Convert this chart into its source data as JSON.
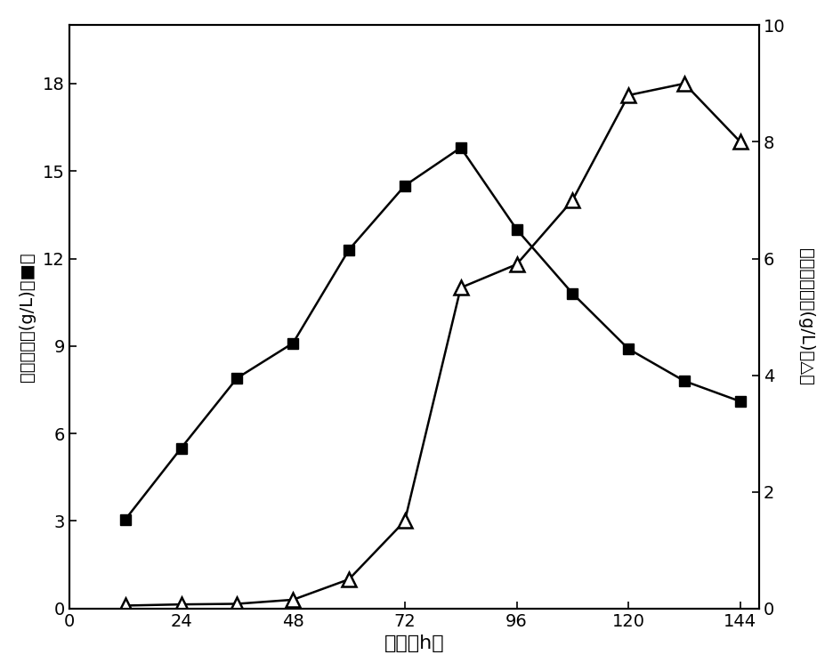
{
  "biomass_x": [
    12,
    24,
    36,
    48,
    60,
    72,
    84,
    96,
    108,
    120,
    132,
    144
  ],
  "biomass_y": [
    3.05,
    5.5,
    7.9,
    9.1,
    12.3,
    14.5,
    15.8,
    13.0,
    10.8,
    8.9,
    7.8,
    7.1
  ],
  "vancomycin_x": [
    12,
    24,
    36,
    48,
    60,
    72,
    84,
    96,
    108,
    120,
    132,
    144
  ],
  "vancomycin_y": [
    0.05,
    0.07,
    0.08,
    0.15,
    0.5,
    1.5,
    5.5,
    5.9,
    7.0,
    8.8,
    9.0,
    8.0
  ],
  "xlabel": "时间（h）",
  "ylabel_left": "菌体生物量(g/L)（■）",
  "ylabel_right": "万古霍素产量(g/L)（△）",
  "xlim": [
    0,
    148
  ],
  "ylim_left": [
    0,
    20
  ],
  "ylim_right": [
    0,
    10
  ],
  "xticks": [
    0,
    24,
    48,
    72,
    96,
    120,
    144
  ],
  "yticks_left": [
    0,
    3,
    6,
    9,
    12,
    15,
    18
  ],
  "yticks_right": [
    0,
    2,
    4,
    6,
    8,
    10
  ],
  "line_color": "#000000",
  "background_color": "#ffffff"
}
